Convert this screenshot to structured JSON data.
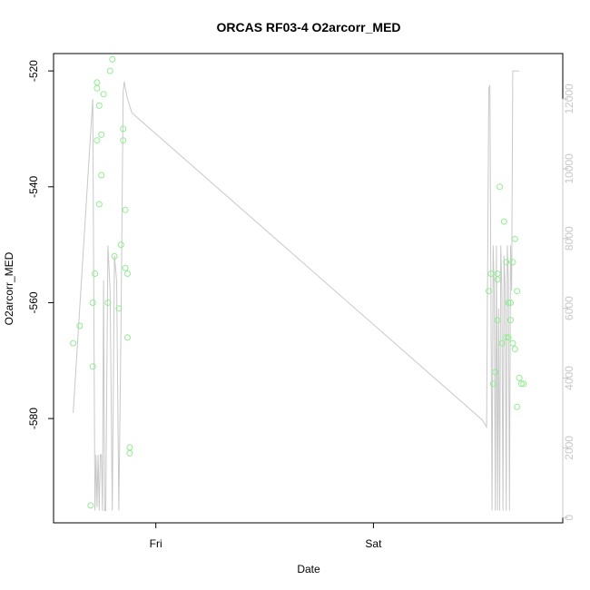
{
  "chart_data": {
    "type": "scatter",
    "title": "ORCAS RF03-4 O2arcorr_MED",
    "xlabel": "Date",
    "ylabel": "O2arcorr_MED",
    "x_ticks": [
      "Fri",
      "Sat"
    ],
    "y_left": {
      "lim": [
        -598,
        -517
      ],
      "ticks": [
        -580,
        -560,
        -540,
        -520
      ]
    },
    "y_right": {
      "lim": [
        -150,
        13300
      ],
      "ticks": [
        0,
        2000,
        4000,
        6000,
        8000,
        10000,
        12000
      ],
      "color": "#c8c8c8"
    },
    "x_range": [
      -0.47,
      1.87
    ],
    "grid": false,
    "series": [
      {
        "kind": "points",
        "color": "#90ee90",
        "x": [
          -0.38,
          -0.35,
          -0.3,
          -0.29,
          -0.29,
          -0.28,
          -0.27,
          -0.27,
          -0.27,
          -0.26,
          -0.26,
          -0.25,
          -0.25,
          -0.24,
          -0.22,
          -0.21,
          -0.2,
          -0.19,
          -0.17,
          -0.16,
          -0.15,
          -0.15,
          -0.14,
          -0.14,
          -0.13,
          -0.13,
          -0.12,
          -0.12,
          1.53,
          1.54,
          1.55,
          1.56,
          1.57,
          1.57,
          1.57,
          1.58,
          1.59,
          1.6,
          1.61,
          1.61,
          1.62,
          1.62,
          1.63,
          1.63,
          1.64,
          1.64,
          1.65,
          1.65,
          1.66,
          1.66,
          1.67,
          1.68,
          1.69
        ],
        "y": [
          -567,
          -564,
          -595,
          -571,
          -560,
          -555,
          -522,
          -532,
          -523,
          -543,
          -526,
          -531,
          -538,
          -524,
          -560,
          -520,
          -518,
          -552,
          -561,
          -550,
          -530,
          -532,
          -544,
          -554,
          -555,
          -566,
          -585,
          -586,
          -558,
          -555,
          -574,
          -572,
          -563,
          -556,
          -555,
          -540,
          -567,
          -546,
          -566,
          -553,
          -560,
          -566,
          -560,
          -563,
          -567,
          -553,
          -549,
          -568,
          -558,
          -578,
          -573,
          -574,
          -574
        ]
      },
      {
        "kind": "line",
        "color": "#c8c8c8",
        "axis": "right",
        "x": [
          -0.38,
          -0.29,
          -0.285,
          -0.28,
          -0.275,
          -0.27,
          -0.265,
          -0.26,
          -0.255,
          -0.25,
          -0.245,
          -0.24,
          -0.235,
          -0.23,
          -0.22,
          -0.21,
          -0.2,
          -0.19,
          -0.18,
          -0.17,
          -0.16,
          -0.15,
          -0.145,
          -0.14,
          -0.13,
          -0.12,
          -0.11,
          1.5,
          1.52,
          1.53,
          1.535,
          1.54,
          1.545,
          1.55,
          1.555,
          1.56,
          1.565,
          1.57,
          1.575,
          1.58,
          1.585,
          1.59,
          1.595,
          1.6,
          1.605,
          1.61,
          1.615,
          1.62,
          1.625,
          1.63,
          1.635,
          1.64,
          1.645,
          1.65,
          1.66,
          1.67
        ],
        "y": [
          3000,
          12000,
          6000,
          200,
          1800,
          300,
          1800,
          200,
          1800,
          1800,
          200,
          6800,
          200,
          200,
          7800,
          6500,
          200,
          7500,
          6800,
          200,
          5500,
          12200,
          12500,
          12300,
          12000,
          11800,
          11600,
          2800,
          2600,
          12300,
          12400,
          6000,
          200,
          7800,
          6500,
          200,
          7800,
          200,
          6000,
          200,
          7800,
          6500,
          200,
          7500,
          6600,
          200,
          7800,
          6800,
          200,
          7800,
          6500,
          12800,
          12800,
          12800,
          12800,
          12800
        ]
      }
    ]
  }
}
